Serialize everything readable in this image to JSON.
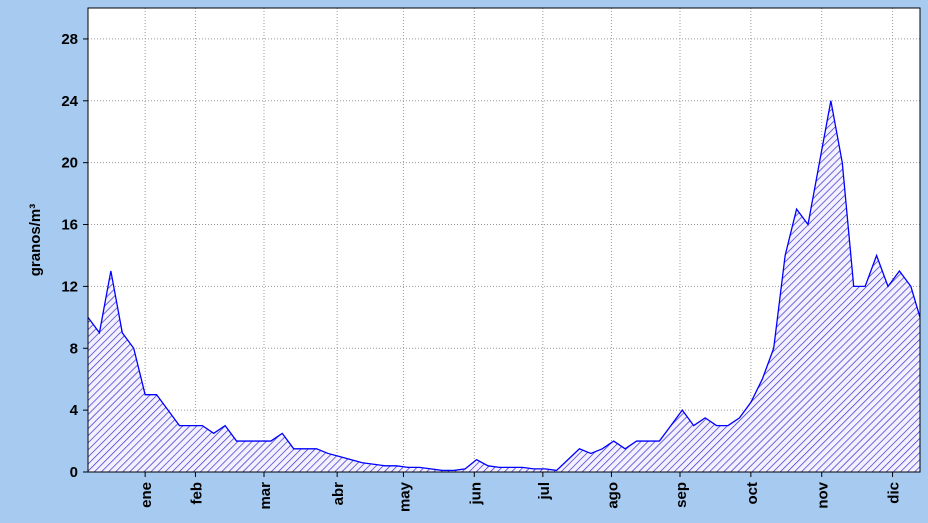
{
  "chart_data": {
    "type": "area",
    "y_label": "granos/m³",
    "x": [
      1,
      6,
      11,
      16,
      21,
      26,
      31,
      36,
      41,
      46,
      51,
      56,
      61,
      66,
      71,
      76,
      81,
      86,
      91,
      96,
      101,
      106,
      111,
      116,
      121,
      126,
      131,
      136,
      141,
      146,
      151,
      156,
      161,
      166,
      171,
      176,
      181,
      186,
      191,
      196,
      201,
      206,
      211,
      216,
      221,
      226,
      231,
      236,
      241,
      246,
      251,
      256,
      261,
      266,
      271,
      276,
      281,
      286,
      291,
      296,
      301,
      306,
      311,
      316,
      321,
      326,
      331,
      336,
      341,
      346,
      351,
      356,
      361,
      365
    ],
    "series": [
      {
        "color": "#0000ff",
        "values": [
          10,
          9,
          13,
          9,
          8,
          5,
          5,
          4,
          3,
          3,
          3,
          2.5,
          3,
          2,
          2,
          2,
          2,
          2.5,
          1.5,
          1.5,
          1.5,
          1.2,
          1,
          0.8,
          0.6,
          0.5,
          0.4,
          0.4,
          0.3,
          0.3,
          0.2,
          0.1,
          0.1,
          0.2,
          0.8,
          0.4,
          0.3,
          0.3,
          0.3,
          0.2,
          0.2,
          0.1,
          0.8,
          1.5,
          1.2,
          1.5,
          2,
          1.5,
          2,
          2,
          2,
          3,
          4,
          3,
          3.5,
          3,
          3,
          3.5,
          4.5,
          6,
          8,
          14,
          17,
          16,
          20,
          24,
          20,
          12,
          12,
          14,
          12,
          13,
          12,
          10
        ]
      }
    ],
    "xlim": [
      1,
      365
    ],
    "xticks": [
      {
        "value": 26,
        "label": "ene"
      },
      {
        "value": 48,
        "label": "feb"
      },
      {
        "value": 78,
        "label": "mar"
      },
      {
        "value": 110,
        "label": "abr"
      },
      {
        "value": 139,
        "label": "may"
      },
      {
        "value": 170,
        "label": "jun"
      },
      {
        "value": 200,
        "label": "jul"
      },
      {
        "value": 230,
        "label": "ago"
      },
      {
        "value": 260,
        "label": "sep"
      },
      {
        "value": 291,
        "label": "oct"
      },
      {
        "value": 322,
        "label": "nov"
      },
      {
        "value": 353,
        "label": "dic"
      }
    ],
    "ylim": [
      0,
      30
    ],
    "yticks": [
      0,
      4,
      8,
      12,
      16,
      20,
      24,
      28
    ],
    "grid": true
  }
}
